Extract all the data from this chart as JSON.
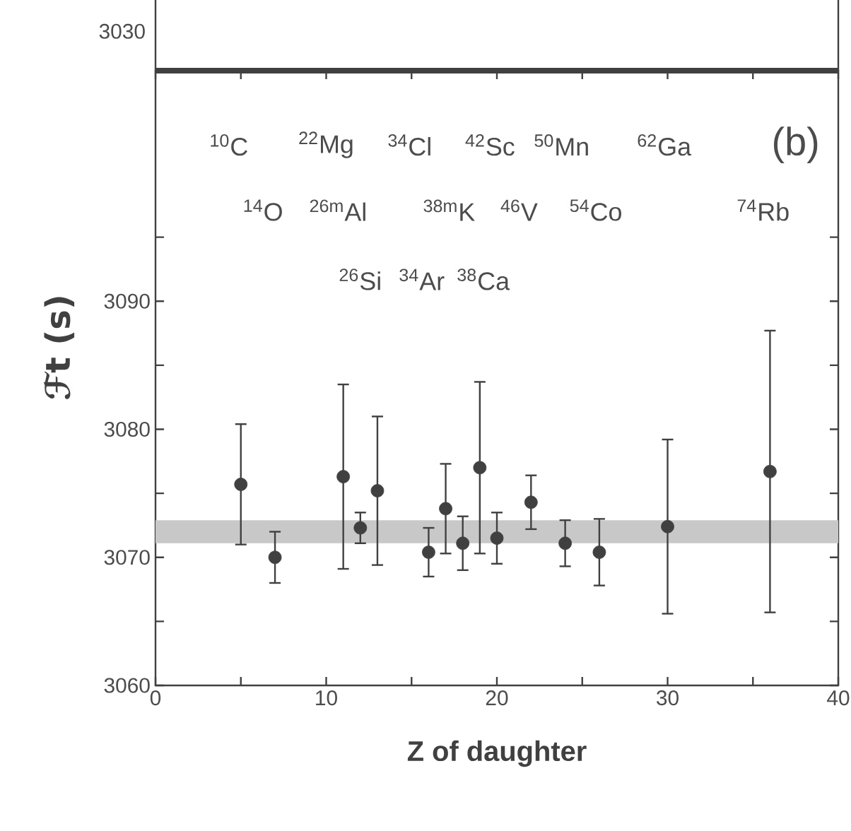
{
  "chart_data": {
    "type": "scatter",
    "xlabel": "Z of daughter",
    "ylabel": "ℱt (s)",
    "color": "#404040",
    "x": [
      5,
      7,
      11,
      12,
      13,
      16,
      17,
      18,
      19,
      20,
      22,
      24,
      26,
      30,
      36
    ],
    "values": [
      3075.7,
      3070.0,
      3076.3,
      3072.3,
      3075.2,
      3070.4,
      3073.8,
      3071.1,
      3077.0,
      3071.5,
      3074.3,
      3071.1,
      3070.4,
      3072.4,
      3076.7
    ],
    "errors": [
      4.7,
      2.0,
      7.2,
      1.2,
      5.8,
      1.9,
      3.5,
      2.1,
      6.7,
      2.0,
      2.1,
      1.8,
      2.6,
      6.8,
      11.0
    ],
    "bands": [
      {
        "axis": "y",
        "from": 3071.1,
        "to": 3072.9,
        "color": "#c8c8c8"
      }
    ],
    "xlim": [
      0,
      40
    ],
    "ylim": [
      3060,
      3108
    ],
    "xticks": [
      0,
      {
        "value": 5,
        "label": null
      },
      10,
      {
        "value": 15,
        "label": null
      },
      20,
      {
        "value": 25,
        "label": null
      },
      30,
      {
        "value": 35,
        "label": null
      },
      40
    ],
    "yticks": [
      3060,
      {
        "value": 3065,
        "label": null
      },
      3070,
      {
        "value": 3075,
        "label": null
      },
      3080,
      {
        "value": 3085,
        "label": null
      },
      3090,
      {
        "value": 3095,
        "label": null
      }
    ],
    "annotations": [
      "$^{10}$C",
      "$^{22}$Mg",
      "$^{34}$Cl",
      "$^{42}$Sc",
      "$^{50}$Mn",
      "$^{62}$Ga",
      "(b)",
      "$^{14}$O",
      "$^{26m}$Al",
      "$^{38m}$K",
      "$^{46}$V",
      "$^{54}$Co",
      "$^{74}$Rb",
      "$^{26}$Si",
      "$^{34}$Ar",
      "$^{38}$Ca",
      "3030"
    ]
  }
}
